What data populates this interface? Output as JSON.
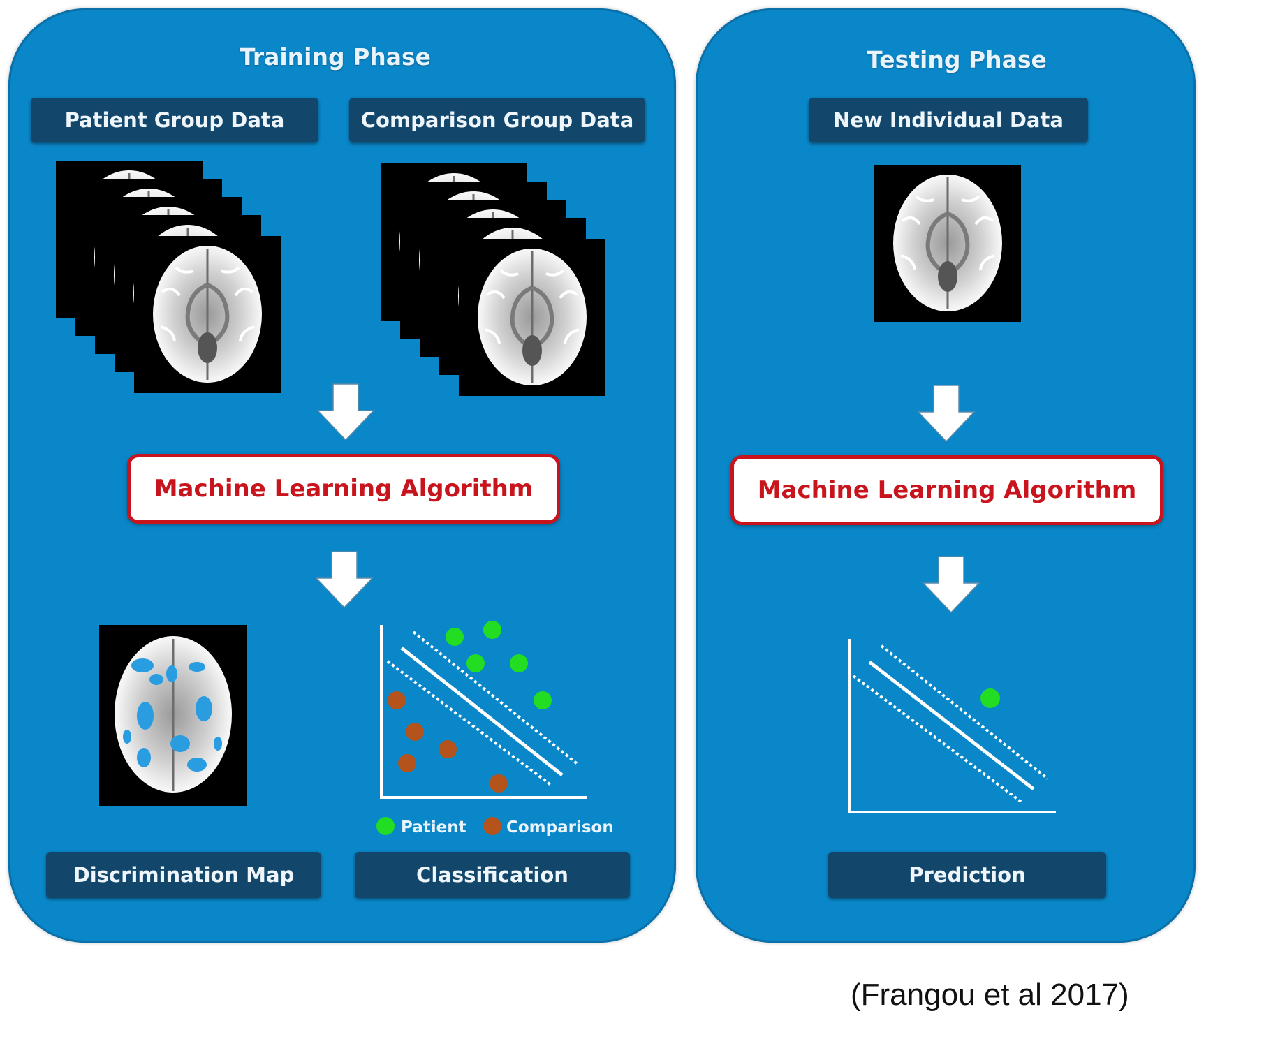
{
  "training": {
    "title": "Training Phase",
    "patient_data_label": "Patient Group Data",
    "comparison_data_label": "Comparison Group Data",
    "algorithm_label": "Machine Learning Algorithm",
    "discrimination_label": "Discrimination  Map",
    "classification_label": "Classification",
    "legend": {
      "patient": "Patient",
      "comparison": "Comparison"
    }
  },
  "testing": {
    "title": "Testing Phase",
    "new_data_label": "New Individual  Data",
    "algorithm_label": "Machine Learning Algorithm",
    "prediction_label": "Prediction"
  },
  "citation": "(Frangou et al 2017)",
  "colors": {
    "panel": "#0a87c9",
    "label_box": "#12476b",
    "algorithm_red": "#c8141c",
    "patient_green": "#22dd22",
    "comparison_brown": "#b5531d"
  },
  "icons": [
    "brain-scan-icon",
    "down-arrow-icon"
  ]
}
